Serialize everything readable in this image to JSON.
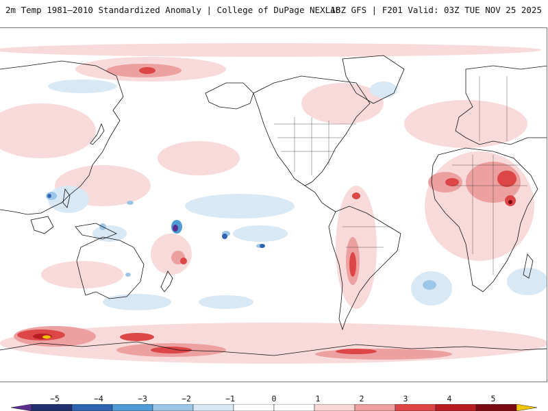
{
  "header": {
    "title_left": "2m Temp 1981–2010 Standardized Anomaly | College of DuPage NEXLAB",
    "title_right": "18Z GFS | F201 Valid: 03Z TUE NOV 25 2025"
  },
  "colorbar": {
    "tick_labels": [
      "−5",
      "−4",
      "−3",
      "−2",
      "−1",
      "0",
      "1",
      "2",
      "3",
      "4",
      "5"
    ],
    "colors": [
      "#5a2d91",
      "#1f2f6b",
      "#2f64b0",
      "#4f9bd6",
      "#9cc6e8",
      "#d9e8f5",
      "#ffffff",
      "#ffffff",
      "#f8d6d6",
      "#eca0a0",
      "#dc4646",
      "#b81d24",
      "#7d0a12",
      "#f2c400"
    ]
  },
  "map": {
    "projection": "equirectangular",
    "center_longitude": -150,
    "legend_position": "bottom"
  }
}
